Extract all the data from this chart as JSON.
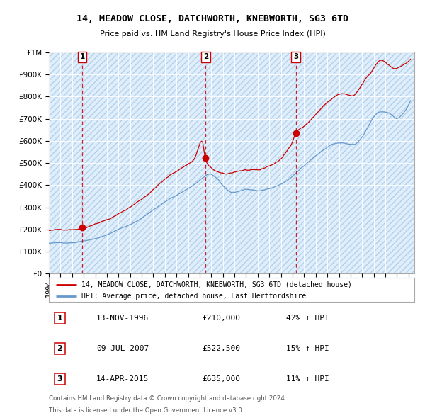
{
  "title": "14, MEADOW CLOSE, DATCHWORTH, KNEBWORTH, SG3 6TD",
  "subtitle": "Price paid vs. HM Land Registry's House Price Index (HPI)",
  "legend_line1": "14, MEADOW CLOSE, DATCHWORTH, KNEBWORTH, SG3 6TD (detached house)",
  "legend_line2": "HPI: Average price, detached house, East Hertfordshire",
  "footer1": "Contains HM Land Registry data © Crown copyright and database right 2024.",
  "footer2": "This data is licensed under the Open Government Licence v3.0.",
  "sales": [
    {
      "label": "1",
      "date": "13-NOV-1996",
      "price": 210000,
      "hpi_pct": "42% ↑ HPI",
      "year": 1996.875
    },
    {
      "label": "2",
      "date": "09-JUL-2007",
      "price": 522500,
      "hpi_pct": "15% ↑ HPI",
      "year": 2007.52
    },
    {
      "label": "3",
      "date": "14-APR-2015",
      "price": 635000,
      "hpi_pct": "11% ↑ HPI",
      "year": 2015.28
    }
  ],
  "red_line_color": "#cc0000",
  "blue_line_color": "#6699cc",
  "grid_color": "#c8d8e8",
  "chart_bg_color": "#ddeeff",
  "marker_box_color": "#cc0000",
  "ylim": [
    0,
    1000000
  ],
  "xlim_start": 1994.0,
  "xlim_end": 2025.5
}
